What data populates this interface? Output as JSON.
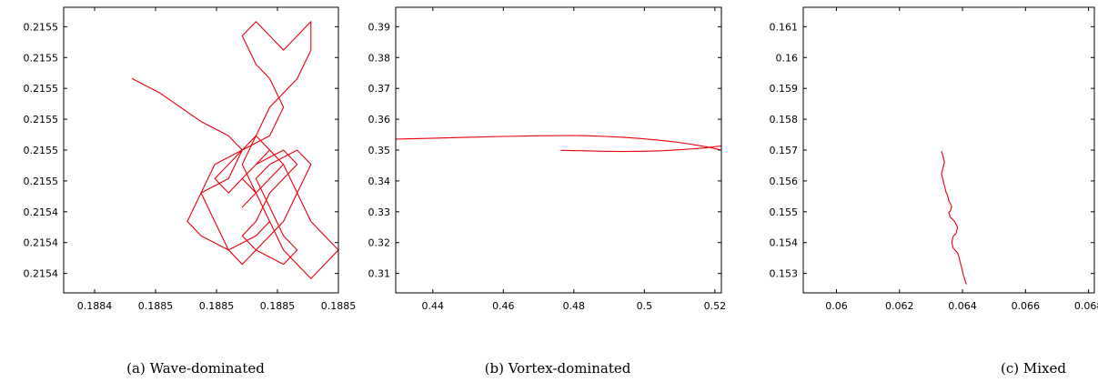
{
  "chart_data": [
    {
      "type": "line",
      "caption": "(a)  Wave-dominated",
      "color": "#e8000b",
      "x_ticks": [
        "0.1884",
        "0.1885",
        "0.1885",
        "0.1885",
        "0.1885"
      ],
      "y_ticks": [
        "0.2155",
        "0.2155",
        "0.2155",
        "0.2155",
        "0.2155",
        "0.2155",
        "0.2154",
        "0.2154",
        "0.2154"
      ],
      "xlim": [
        0.18835,
        0.18855
      ],
      "ylim": [
        0.21538,
        0.21558
      ],
      "series": [
        {
          "x": [
            0.1884,
            0.18842,
            0.18845,
            0.18847,
            0.18848,
            0.18847,
            0.18845,
            0.18844,
            0.18845,
            0.18847,
            0.18849,
            0.1885,
            0.18849,
            0.18848,
            0.18849,
            0.18851,
            0.18852,
            0.18851,
            0.1885,
            0.18849,
            0.18848,
            0.18849,
            0.18851,
            0.18852,
            0.18851,
            0.1885,
            0.18849,
            0.1885,
            0.18852,
            0.18853,
            0.18852,
            0.18851,
            0.1885,
            0.18849,
            0.18848,
            0.18847,
            0.18846,
            0.18845,
            0.18846,
            0.18848,
            0.1885,
            0.18851,
            0.1885,
            0.18849,
            0.18848,
            0.18849,
            0.1885,
            0.18851,
            0.18852,
            0.18853,
            0.18853,
            0.18852,
            0.18851,
            0.1885,
            0.18849,
            0.18848,
            0.18849,
            0.1885,
            0.18851,
            0.18852,
            0.18853,
            0.18854,
            0.18855,
            0.18854,
            0.18853,
            0.18852,
            0.18851,
            0.1885,
            0.18849,
            0.18848,
            0.18847,
            0.18846,
            0.18847,
            0.18848,
            0.18849,
            0.1885,
            0.18851,
            0.1885,
            0.18849,
            0.18848
          ],
          "y": [
            0.21553,
            0.21552,
            0.2155,
            0.21549,
            0.21548,
            0.21546,
            0.21545,
            0.21543,
            0.21542,
            0.21541,
            0.21542,
            0.21543,
            0.21545,
            0.21546,
            0.21547,
            0.21548,
            0.21547,
            0.21546,
            0.21545,
            0.21543,
            0.21542,
            0.21541,
            0.2154,
            0.21541,
            0.21542,
            0.21544,
            0.21546,
            0.21547,
            0.21548,
            0.21547,
            0.21545,
            0.21543,
            0.21542,
            0.21541,
            0.2154,
            0.21541,
            0.21543,
            0.21545,
            0.21547,
            0.21548,
            0.21549,
            0.21551,
            0.21553,
            0.21554,
            0.21556,
            0.21557,
            0.21556,
            0.21555,
            0.21556,
            0.21557,
            0.21555,
            0.21553,
            0.21552,
            0.21551,
            0.21549,
            0.21547,
            0.21545,
            0.21543,
            0.21541,
            0.2154,
            0.21539,
            0.2154,
            0.21541,
            0.21542,
            0.21543,
            0.21545,
            0.21547,
            0.21548,
            0.21547,
            0.21546,
            0.21545,
            0.21546,
            0.21547,
            0.21548,
            0.21549,
            0.21548,
            0.21547,
            0.21546,
            0.21545,
            0.21544
          ]
        }
      ]
    },
    {
      "type": "line",
      "caption": "(b)  Vortex-dominated",
      "color": "#e8000b",
      "x_ticks": [
        "0.44",
        "0.46",
        "0.48",
        "0.5",
        "0.52"
      ],
      "y_ticks": [
        "0.39",
        "0.38",
        "0.37",
        "0.36",
        "0.35",
        "0.34",
        "0.33",
        "0.32",
        "0.31"
      ],
      "xlim": [
        0.4335,
        0.529
      ],
      "ylim": [
        0.3005,
        0.3965
      ],
      "series": [
        {
          "x": [
            0.4335,
            0.445,
            0.455,
            0.465,
            0.475,
            0.485,
            0.49,
            0.495,
            0.5,
            0.505,
            0.51,
            0.515,
            0.52,
            0.525,
            0.529
          ],
          "y": [
            0.3522,
            0.3525,
            0.3528,
            0.3531,
            0.3533,
            0.3534,
            0.3533,
            0.3531,
            0.3528,
            0.3524,
            0.3519,
            0.3513,
            0.3505,
            0.3495,
            0.3485
          ]
        },
        {
          "x": [
            0.482,
            0.488,
            0.494,
            0.5,
            0.506,
            0.512,
            0.518,
            0.524,
            0.529
          ],
          "y": [
            0.3484,
            0.3483,
            0.3481,
            0.348,
            0.3481,
            0.3483,
            0.3487,
            0.3492,
            0.3499
          ]
        }
      ]
    },
    {
      "type": "line",
      "caption": "(c)  Mixed",
      "color": "#e8000b",
      "x_ticks": [
        "0.06",
        "0.062",
        "0.064",
        "0.066",
        "0.068"
      ],
      "y_ticks": [
        "0.161",
        "0.16",
        "0.159",
        "0.158",
        "0.157",
        "0.156",
        "0.155",
        "0.154",
        "0.153"
      ],
      "xlim": [
        0.0595,
        0.0695
      ],
      "ylim": [
        0.1521,
        0.1617
      ],
      "series": [
        {
          "x": [
            0.06425,
            0.0643,
            0.06435,
            0.0643,
            0.06425,
            0.0643,
            0.06435,
            0.0644,
            0.06445,
            0.0645,
            0.0646,
            0.06455,
            0.0645,
            0.06455,
            0.0646,
            0.0647,
            0.0648,
            0.06475,
            0.06465,
            0.0646,
            0.06465,
            0.0648,
            0.06485,
            0.0649,
            0.06495,
            0.065,
            0.0651
          ],
          "y": [
            0.15685,
            0.1567,
            0.1565,
            0.1563,
            0.1561,
            0.1559,
            0.1557,
            0.1555,
            0.1554,
            0.1552,
            0.155,
            0.15485,
            0.1548,
            0.15465,
            0.1546,
            0.1545,
            0.1543,
            0.1541,
            0.154,
            0.1538,
            0.1536,
            0.15345,
            0.1533,
            0.1531,
            0.1529,
            0.1527,
            0.1524
          ]
        }
      ]
    }
  ]
}
